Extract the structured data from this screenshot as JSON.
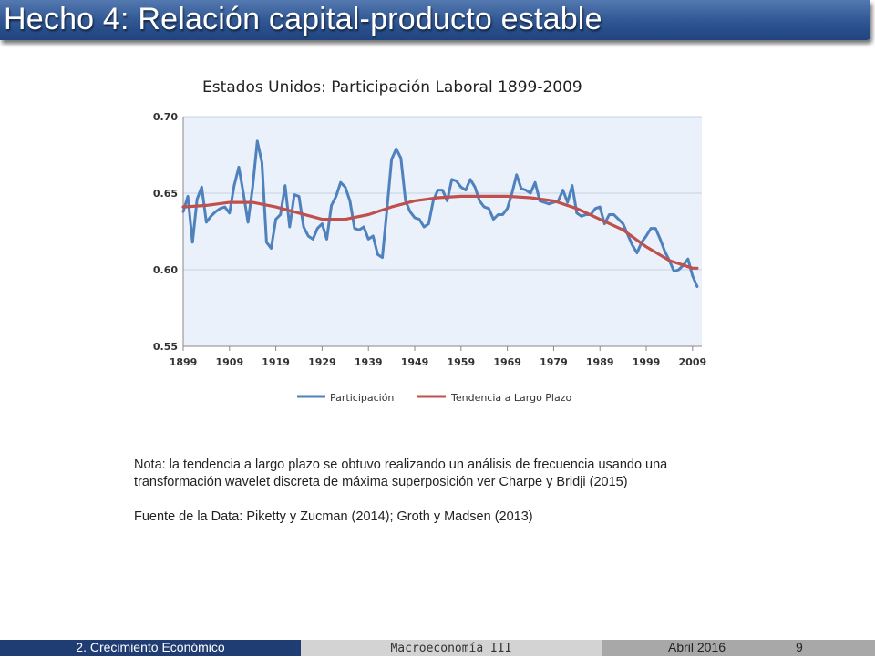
{
  "slide": {
    "title": "Hecho 4: Relación capital-producto estable",
    "note": "Nota: la tendencia a largo plazo se obtuvo realizando un análisis de frecuencia usando una transformación wavelet discreta de máxima superposición ver Charpe y Bridji (2015)",
    "source": "Fuente de la Data: Piketty y Zucman (2014); Groth y Madsen (2013)"
  },
  "footer": {
    "section": "2. Crecimiento Económico",
    "course": "Macroeconomía III",
    "date": "Abril 2016",
    "page": "9"
  },
  "colors": {
    "title_bar": "#2f5592",
    "series_participacion": "#4f81bd",
    "series_tendencia": "#c0504d",
    "plot_background": "#eaf1fa"
  },
  "chart_data": {
    "type": "line",
    "title": "Estados Unidos: Participación Laboral 1899-2009",
    "xlabel": "",
    "ylabel": "",
    "xlim": [
      1899,
      2011
    ],
    "ylim": [
      0.55,
      0.7
    ],
    "x_ticks": [
      "1899",
      "1909",
      "1919",
      "1929",
      "1939",
      "1949",
      "1959",
      "1969",
      "1979",
      "1989",
      "1999",
      "2009"
    ],
    "y_ticks": [
      "0.55",
      "0.60",
      "0.65",
      "0.70"
    ],
    "grid": "horizontal",
    "legend_position": "bottom",
    "series": [
      {
        "name": "Participación",
        "color": "#4f81bd",
        "x": [
          1899,
          1900,
          1901,
          1902,
          1903,
          1904,
          1905,
          1906,
          1907,
          1908,
          1909,
          1910,
          1911,
          1912,
          1913,
          1914,
          1915,
          1916,
          1917,
          1918,
          1919,
          1920,
          1921,
          1922,
          1923,
          1924,
          1925,
          1926,
          1927,
          1928,
          1929,
          1930,
          1931,
          1932,
          1933,
          1934,
          1935,
          1936,
          1937,
          1938,
          1939,
          1940,
          1941,
          1942,
          1943,
          1944,
          1945,
          1946,
          1947,
          1948,
          1949,
          1950,
          1951,
          1952,
          1953,
          1954,
          1955,
          1956,
          1957,
          1958,
          1959,
          1960,
          1961,
          1962,
          1963,
          1964,
          1965,
          1966,
          1967,
          1968,
          1969,
          1970,
          1971,
          1972,
          1973,
          1974,
          1975,
          1976,
          1977,
          1978,
          1979,
          1980,
          1981,
          1982,
          1983,
          1984,
          1985,
          1986,
          1987,
          1988,
          1989,
          1990,
          1991,
          1992,
          1993,
          1994,
          1995,
          1996,
          1997,
          1998,
          1999,
          2000,
          2001,
          2002,
          2003,
          2004,
          2005,
          2006,
          2007,
          2008,
          2009,
          2010
        ],
        "y": [
          0.638,
          0.648,
          0.618,
          0.646,
          0.654,
          0.631,
          0.635,
          0.638,
          0.64,
          0.641,
          0.637,
          0.655,
          0.667,
          0.65,
          0.631,
          0.654,
          0.684,
          0.67,
          0.618,
          0.614,
          0.633,
          0.636,
          0.655,
          0.628,
          0.649,
          0.648,
          0.628,
          0.622,
          0.62,
          0.627,
          0.63,
          0.62,
          0.642,
          0.648,
          0.657,
          0.654,
          0.645,
          0.627,
          0.626,
          0.628,
          0.62,
          0.622,
          0.61,
          0.608,
          0.639,
          0.672,
          0.679,
          0.673,
          0.645,
          0.638,
          0.634,
          0.633,
          0.628,
          0.63,
          0.645,
          0.652,
          0.652,
          0.645,
          0.659,
          0.658,
          0.654,
          0.652,
          0.659,
          0.654,
          0.645,
          0.641,
          0.64,
          0.633,
          0.636,
          0.636,
          0.64,
          0.65,
          0.662,
          0.653,
          0.652,
          0.65,
          0.657,
          0.645,
          0.644,
          0.643,
          0.644,
          0.645,
          0.652,
          0.644,
          0.655,
          0.637,
          0.635,
          0.636,
          0.636,
          0.64,
          0.641,
          0.63,
          0.636,
          0.636,
          0.633,
          0.63,
          0.623,
          0.616,
          0.611,
          0.618,
          0.622,
          0.627,
          0.627,
          0.62,
          0.612,
          0.606,
          0.599,
          0.6,
          0.603,
          0.607,
          0.596,
          0.589
        ]
      },
      {
        "name": "Tendencia a Largo Plazo",
        "color": "#c0504d",
        "x": [
          1899,
          1904,
          1909,
          1914,
          1919,
          1924,
          1929,
          1934,
          1939,
          1944,
          1949,
          1954,
          1959,
          1964,
          1969,
          1974,
          1979,
          1984,
          1989,
          1994,
          1999,
          2004,
          2009,
          2010
        ],
        "y": [
          0.641,
          0.642,
          0.644,
          0.644,
          0.641,
          0.637,
          0.633,
          0.633,
          0.636,
          0.641,
          0.645,
          0.647,
          0.648,
          0.648,
          0.648,
          0.647,
          0.645,
          0.64,
          0.633,
          0.626,
          0.615,
          0.606,
          0.601,
          0.601
        ]
      }
    ]
  }
}
